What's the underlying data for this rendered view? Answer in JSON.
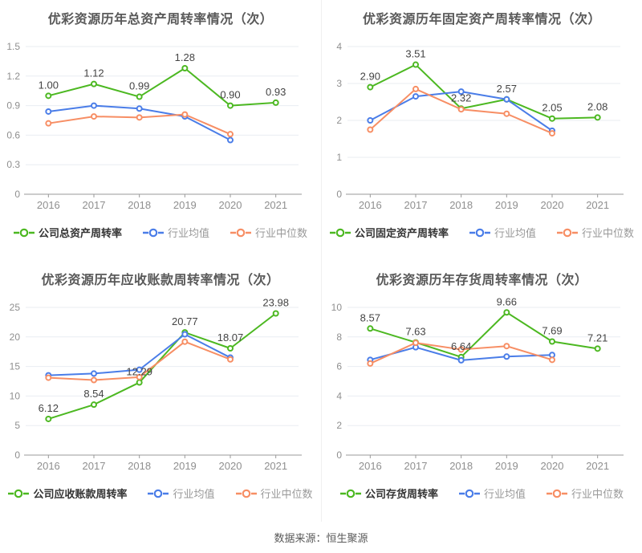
{
  "footer": {
    "text": "数据来源：恒生聚源"
  },
  "colors": {
    "company": "#4cb821",
    "industry_avg": "#4a7de8",
    "industry_median": "#f78e64",
    "grid_line": "#e9edf2",
    "axis_line": "#999999",
    "tick_text": "#8f8f8f",
    "point_label": "#444444"
  },
  "chart_data": [
    {
      "type": "line",
      "title": "优彩资源历年总资产周转率情况（次）",
      "x": [
        "2016",
        "2017",
        "2018",
        "2019",
        "2020",
        "2021"
      ],
      "ylim": [
        0,
        1.5
      ],
      "yticks": [
        "0",
        "0.3",
        "0.6",
        "0.9",
        "1.2",
        "1.5"
      ],
      "grid": true,
      "legend_position": "bottom",
      "series": [
        {
          "key": "company",
          "name": "公司总资产周转率",
          "color": "#4cb821",
          "emphasis": true,
          "values": [
            1.0,
            1.12,
            0.99,
            1.28,
            0.9,
            0.93
          ],
          "point_labels": [
            "1.00",
            "1.12",
            "0.99",
            "1.28",
            "0.90",
            "0.93"
          ]
        },
        {
          "key": "industry-avg",
          "name": "行业均值",
          "color": "#4a7de8",
          "values": [
            0.84,
            0.9,
            0.87,
            0.79,
            0.55,
            null
          ]
        },
        {
          "key": "industry-median",
          "name": "行业中位数",
          "color": "#f78e64",
          "values": [
            0.72,
            0.79,
            0.78,
            0.81,
            0.61,
            null
          ]
        }
      ]
    },
    {
      "type": "line",
      "title": "优彩资源历年固定资产周转率情况（次）",
      "x": [
        "2016",
        "2017",
        "2018",
        "2019",
        "2020",
        "2021"
      ],
      "ylim": [
        0,
        4
      ],
      "yticks": [
        "0",
        "1",
        "2",
        "3",
        "4"
      ],
      "grid": true,
      "legend_position": "bottom",
      "series": [
        {
          "key": "company",
          "name": "公司固定资产周转率",
          "color": "#4cb821",
          "emphasis": true,
          "values": [
            2.9,
            3.51,
            2.32,
            2.57,
            2.05,
            2.08
          ],
          "point_labels": [
            "2.90",
            "3.51",
            "2.32",
            "2.57",
            "2.05",
            "2.08"
          ]
        },
        {
          "key": "industry-avg",
          "name": "行业均值",
          "color": "#4a7de8",
          "values": [
            2.0,
            2.65,
            2.78,
            2.57,
            1.72,
            null
          ]
        },
        {
          "key": "industry-median",
          "name": "行业中位数",
          "color": "#f78e64",
          "values": [
            1.75,
            2.85,
            2.3,
            2.18,
            1.65,
            null
          ]
        }
      ]
    },
    {
      "type": "line",
      "title": "优彩资源历年应收账款周转率情况（次）",
      "x": [
        "2016",
        "2017",
        "2018",
        "2019",
        "2020",
        "2021"
      ],
      "ylim": [
        0,
        25
      ],
      "yticks": [
        "0",
        "5",
        "10",
        "15",
        "20",
        "25"
      ],
      "grid": true,
      "legend_position": "bottom",
      "series": [
        {
          "key": "company",
          "name": "公司应收账款周转率",
          "color": "#4cb821",
          "emphasis": true,
          "values": [
            6.12,
            8.54,
            12.29,
            20.77,
            18.07,
            23.98
          ],
          "point_labels": [
            "6.12",
            "8.54",
            "12.29",
            "20.77",
            "18.07",
            "23.98"
          ]
        },
        {
          "key": "industry-avg",
          "name": "行业均值",
          "color": "#4a7de8",
          "values": [
            13.5,
            13.8,
            14.45,
            20.45,
            16.5,
            null
          ]
        },
        {
          "key": "industry-median",
          "name": "行业中位数",
          "color": "#f78e64",
          "values": [
            13.1,
            12.7,
            13.2,
            19.2,
            16.2,
            null
          ]
        }
      ]
    },
    {
      "type": "line",
      "title": "优彩资源历年存货周转率情况（次）",
      "x": [
        "2016",
        "2017",
        "2018",
        "2019",
        "2020",
        "2021"
      ],
      "ylim": [
        0,
        10
      ],
      "yticks": [
        "0",
        "2",
        "4",
        "6",
        "8",
        "10"
      ],
      "grid": true,
      "legend_position": "bottom",
      "series": [
        {
          "key": "company",
          "name": "公司存货周转率",
          "color": "#4cb821",
          "emphasis": true,
          "values": [
            8.57,
            7.63,
            6.64,
            9.66,
            7.69,
            7.21
          ],
          "point_labels": [
            "8.57",
            "7.63",
            "6.64",
            "9.66",
            "7.69",
            "7.21"
          ]
        },
        {
          "key": "industry-avg",
          "name": "行业均值",
          "color": "#4a7de8",
          "values": [
            6.45,
            7.3,
            6.42,
            6.67,
            6.78,
            null
          ]
        },
        {
          "key": "industry-median",
          "name": "行业中位数",
          "color": "#f78e64",
          "values": [
            6.2,
            7.6,
            7.15,
            7.38,
            6.45,
            null
          ]
        }
      ]
    }
  ]
}
